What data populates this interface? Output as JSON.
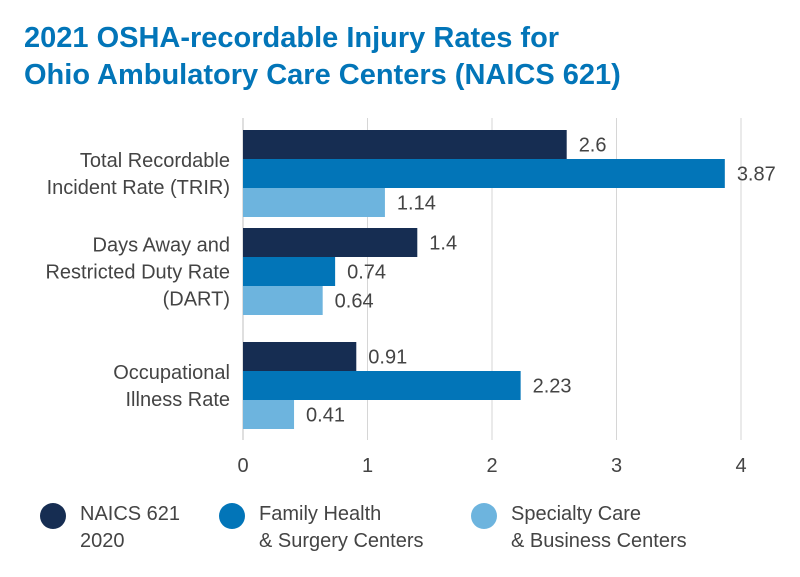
{
  "title_lines": [
    "2021 OSHA-recordable Injury Rates for",
    "Ohio Ambulatory Care Centers (NAICS 621)"
  ],
  "colors": {
    "title": "#0275B8",
    "text": "#444444",
    "grid": "#D6D6D6",
    "axis": "#BFBFBF"
  },
  "chart_data": {
    "type": "bar",
    "orientation": "horizontal",
    "title": "2021 OSHA-recordable Injury Rates for Ohio Ambulatory Care Centers (NAICS 621)",
    "categories": [
      [
        "Total Recordable",
        "Incident Rate (TRIR)"
      ],
      [
        "Days Away and",
        "Restricted Duty Rate",
        "(DART)"
      ],
      [
        "Occupational",
        "Illness Rate"
      ]
    ],
    "series": [
      {
        "name": "NAICS 621 2020",
        "color": "#162D52",
        "values": [
          2.6,
          1.4,
          0.91
        ],
        "labels": [
          "2.6",
          "1.4",
          "0.91"
        ]
      },
      {
        "name": "Family Health & Surgery Centers",
        "color": "#0275B8",
        "values": [
          3.87,
          0.74,
          2.23
        ],
        "labels": [
          "3.87",
          "0.74",
          "2.23"
        ]
      },
      {
        "name": "Specialty Care & Business Centers",
        "color": "#6DB4DE",
        "values": [
          1.14,
          0.64,
          0.41
        ],
        "labels": [
          "1.14",
          "0.64",
          "0.41"
        ]
      }
    ],
    "xlim": [
      0,
      4
    ],
    "xticks": [
      0,
      1,
      2,
      3,
      4
    ],
    "grid": "vertical",
    "legend": "bottom"
  },
  "legend": [
    {
      "lines": [
        "NAICS 621",
        "2020"
      ],
      "color": "#162D52"
    },
    {
      "lines": [
        "Family Health",
        "& Surgery Centers"
      ],
      "color": "#0275B8"
    },
    {
      "lines": [
        "Specialty Care",
        "& Business Centers"
      ],
      "color": "#6DB4DE"
    }
  ]
}
